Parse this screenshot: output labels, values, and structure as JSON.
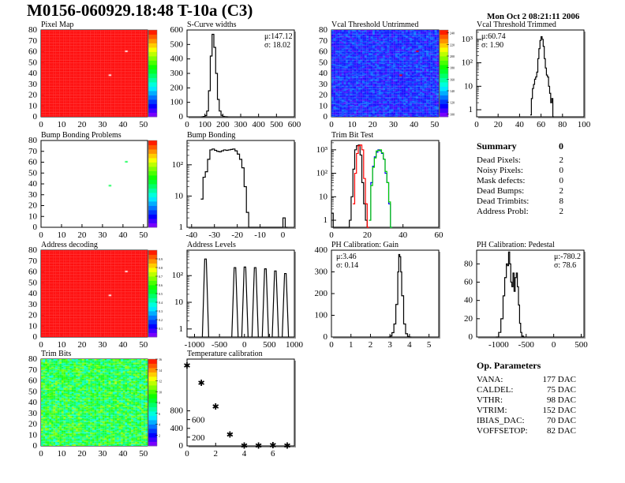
{
  "title": "M0156-060929.18:48 T-10a (C3)",
  "date": "Mon Oct  2 08:21:11 2006",
  "summary": {
    "title": "Summary",
    "value": "0",
    "rows": [
      {
        "label": "Dead Pixels:",
        "value": "2"
      },
      {
        "label": "Noisy Pixels:",
        "value": "0"
      },
      {
        "label": "Mask defects:",
        "value": "0"
      },
      {
        "label": "Dead Bumps:",
        "value": "2"
      },
      {
        "label": "Dead Trimbits:",
        "value": "8"
      },
      {
        "label": "Address Probl:",
        "value": "2"
      }
    ]
  },
  "op_parameters": {
    "title": "Op. Parameters",
    "rows": [
      {
        "label": "VANA:",
        "value": "177 DAC"
      },
      {
        "label": "CALDEL:",
        "value": "75 DAC"
      },
      {
        "label": "VTHR:",
        "value": "98 DAC"
      },
      {
        "label": "VTRIM:",
        "value": "152 DAC"
      },
      {
        "label": "IBIAS_DAC:",
        "value": "70 DAC"
      },
      {
        "label": "VOFFSETOP:",
        "value": "82 DAC"
      }
    ]
  },
  "chart_data": [
    {
      "id": "pixel-map",
      "type": "heatmap",
      "title": "Pixel Map",
      "xlim": [
        0,
        52
      ],
      "ylim": [
        0,
        80
      ],
      "xticks": [
        0,
        10,
        20,
        30,
        40,
        50
      ],
      "yticks": [
        0,
        10,
        20,
        30,
        40,
        50,
        60,
        70,
        80
      ],
      "zlim": [
        0,
        10
      ],
      "base": 10,
      "spread": 0,
      "special": [
        {
          "x": 33,
          "y": 38,
          "z": 0
        },
        {
          "x": 41,
          "y": 60,
          "z": 0
        }
      ],
      "empty_color": "#ffffff"
    },
    {
      "id": "s-curve-widths",
      "type": "hist",
      "title": "S-Curve widths",
      "xlim": [
        0,
        600
      ],
      "ylim": [
        0,
        600
      ],
      "xticks": [
        0,
        100,
        200,
        300,
        400,
        500,
        600
      ],
      "yticks": [
        0,
        100,
        200,
        300,
        400,
        500,
        600
      ],
      "stats": [
        "μ:147.12",
        "σ: 18.02"
      ],
      "stats_pos": "top-right",
      "series": [
        {
          "color": "#000000",
          "x": [
            80,
            90,
            100,
            110,
            120,
            130,
            140,
            150,
            160,
            170,
            180,
            190,
            200,
            210,
            220
          ],
          "y": [
            0,
            2,
            8,
            40,
            180,
            420,
            570,
            480,
            300,
            120,
            40,
            10,
            3,
            1,
            0
          ]
        }
      ]
    },
    {
      "id": "vcal-threshold-untrimmed",
      "type": "heatmap",
      "title": "Vcal Threshold Untrimmed",
      "xlim": [
        0,
        52
      ],
      "ylim": [
        0,
        80
      ],
      "xticks": [
        0,
        10,
        20,
        30,
        40,
        50
      ],
      "yticks": [
        0,
        10,
        20,
        30,
        40,
        50,
        60,
        70,
        80
      ],
      "zlim": [
        95,
        245
      ],
      "zticks": [
        100,
        120,
        140,
        160,
        180,
        200,
        220,
        240
      ],
      "base": 117,
      "spread": 14,
      "special": [
        {
          "x": 33,
          "y": 38,
          "z": 245
        },
        {
          "x": 41,
          "y": 60,
          "z": 245
        }
      ]
    },
    {
      "id": "vcal-threshold-trimmed",
      "type": "hist",
      "title": "Vcal Threshold Trimmed",
      "log": true,
      "xlim": [
        0,
        100
      ],
      "ylim": [
        0.5,
        2500
      ],
      "xticks": [
        0,
        20,
        40,
        60,
        80,
        100
      ],
      "ylogticks": [
        1,
        10,
        100,
        1000
      ],
      "stats": [
        "μ:60.74",
        "σ: 1.90"
      ],
      "stats_pos": "top-left",
      "series": [
        {
          "color": "#000000",
          "x": [
            50,
            51,
            52,
            53,
            54,
            55,
            56,
            57,
            58,
            59,
            60,
            61,
            62,
            63,
            64,
            65,
            66,
            67,
            68,
            69,
            70,
            71
          ],
          "y": [
            0.6,
            3,
            8,
            12,
            20,
            25,
            40,
            150,
            400,
            900,
            1300,
            1000,
            500,
            150,
            60,
            30,
            25,
            10,
            5,
            2,
            3,
            0.5
          ]
        }
      ]
    },
    {
      "id": "bump-bonding-problems",
      "type": "heatmap",
      "title": "Bump Bonding Problems",
      "xlim": [
        0,
        52
      ],
      "ylim": [
        0,
        80
      ],
      "xticks": [
        0,
        10,
        20,
        30,
        40,
        50
      ],
      "yticks": [
        0,
        10,
        20,
        30,
        40,
        50,
        60,
        70,
        80
      ],
      "zlim": [
        0,
        5
      ],
      "base": null,
      "spread": 0,
      "special": [
        {
          "x": 33,
          "y": 38,
          "z": 2.5
        },
        {
          "x": 41,
          "y": 60,
          "z": 2.5
        }
      ]
    },
    {
      "id": "bump-bonding",
      "type": "hist",
      "title": "Bump Bonding",
      "log": true,
      "xlim": [
        -42,
        5
      ],
      "ylim": [
        1,
        600
      ],
      "xticks": [
        -40,
        -30,
        -20,
        -10,
        0
      ],
      "ylogticks": [
        1,
        10,
        100
      ],
      "series": [
        {
          "color": "#000000",
          "x": [
            -36,
            -35,
            -34,
            -33,
            -32,
            -31,
            -30,
            -29,
            -28,
            -27,
            -26,
            -25,
            -24,
            -23,
            -22,
            -21,
            -20,
            -19,
            -18,
            -17,
            -16,
            -15,
            0,
            1
          ],
          "y": [
            8,
            40,
            60,
            150,
            300,
            320,
            290,
            270,
            260,
            280,
            300,
            290,
            300,
            310,
            320,
            280,
            220,
            150,
            80,
            20,
            3,
            1,
            2,
            1
          ]
        }
      ]
    },
    {
      "id": "trim-bit-test",
      "type": "hist",
      "title": "Trim Bit Test",
      "log": true,
      "xlim": [
        0,
        60
      ],
      "ylim": [
        0.5,
        2500
      ],
      "xticks": [
        0,
        20,
        40,
        60
      ],
      "ylogticks": [
        1,
        10,
        100,
        1000
      ],
      "series": [
        {
          "color": "#000000",
          "x": [
            0,
            1,
            10,
            11,
            12,
            13,
            14,
            15,
            16,
            17,
            18,
            19,
            20
          ],
          "y": [
            2,
            0.5,
            1,
            10,
            150,
            1000,
            1500,
            1600,
            600,
            40,
            5,
            1,
            0.5
          ]
        },
        {
          "color": "#ff0000",
          "x": [
            12,
            13,
            14,
            15,
            16,
            17,
            18,
            19,
            20
          ],
          "y": [
            5,
            100,
            700,
            1500,
            1600,
            1000,
            60,
            5,
            0.5
          ]
        },
        {
          "color": "#0000ff",
          "x": [
            21,
            22,
            23,
            24,
            25,
            26,
            27,
            28,
            29,
            30,
            31,
            32,
            33
          ],
          "y": [
            1,
            40,
            200,
            500,
            800,
            1000,
            900,
            700,
            400,
            100,
            40,
            5,
            0.5
          ]
        },
        {
          "color": "#00cc00",
          "x": [
            21,
            22,
            23,
            24,
            25,
            26,
            27,
            28,
            29,
            30,
            31,
            32,
            33
          ],
          "y": [
            1,
            30,
            180,
            450,
            900,
            950,
            1000,
            750,
            400,
            120,
            40,
            6,
            0.5
          ]
        }
      ]
    },
    {
      "id": "address-decoding",
      "type": "heatmap",
      "title": "Address decoding",
      "xlim": [
        0,
        52
      ],
      "ylim": [
        0,
        80
      ],
      "xticks": [
        0,
        10,
        20,
        30,
        40,
        50
      ],
      "yticks": [
        0,
        10,
        20,
        30,
        40,
        50,
        60,
        70,
        80
      ],
      "zlim": [
        0,
        1
      ],
      "zticks": [
        0.1,
        0.2,
        0.3,
        0.4,
        0.5,
        0.6,
        0.7,
        0.8,
        0.9
      ],
      "base": 1,
      "spread": 0,
      "special": [
        {
          "x": 33,
          "y": 38,
          "z": 0
        },
        {
          "x": 41,
          "y": 60,
          "z": 0
        }
      ],
      "empty_color": "#ffffff"
    },
    {
      "id": "address-levels",
      "type": "spikes",
      "title": "Address Levels",
      "log": true,
      "xlim": [
        -1150,
        1000
      ],
      "ylim": [
        0.5,
        900
      ],
      "xticks": [
        -1000,
        -500,
        0,
        500,
        1000
      ],
      "ylogticks": [
        1,
        10,
        100
      ],
      "peaks": [
        {
          "x": -780,
          "y": 420
        },
        {
          "x": -190,
          "y": 200
        },
        {
          "x": 10,
          "y": 210
        },
        {
          "x": 215,
          "y": 200
        },
        {
          "x": 420,
          "y": 180
        },
        {
          "x": 620,
          "y": 150
        },
        {
          "x": 820,
          "y": 120
        }
      ]
    },
    {
      "id": "ph-calibration-gain",
      "type": "hist",
      "title": "PH Calibration: Gain",
      "xlim": [
        0,
        5.5
      ],
      "ylim": [
        0,
        400
      ],
      "xticks": [
        0,
        1,
        2,
        3,
        4,
        5
      ],
      "yticks": [
        0,
        100,
        200,
        300,
        400
      ],
      "stats": [
        "μ:3.46",
        "σ: 0.14"
      ],
      "stats_pos": "top-left",
      "series": [
        {
          "color": "#000000",
          "x": [
            2.9,
            3.0,
            3.1,
            3.2,
            3.3,
            3.4,
            3.45,
            3.5,
            3.55,
            3.6,
            3.7,
            3.8,
            3.9,
            4.0
          ],
          "y": [
            0,
            5,
            20,
            60,
            150,
            300,
            380,
            370,
            300,
            190,
            60,
            15,
            3,
            0
          ]
        }
      ]
    },
    {
      "id": "ph-calibration-pedestal",
      "type": "hist",
      "title": "PH Calibration: Pedestal",
      "xlim": [
        -1400,
        550
      ],
      "ylim": [
        0,
        95
      ],
      "xticks": [
        -1000,
        -500,
        0,
        500
      ],
      "yticks": [
        0,
        20,
        40,
        60,
        80
      ],
      "stats": [
        "μ:-780.2",
        "σ: 78.6"
      ],
      "stats_pos": "top-right",
      "series": [
        {
          "color": "#000000",
          "x": [
            -1050,
            -1000,
            -960,
            -920,
            -890,
            -860,
            -840,
            -820,
            -800,
            -780,
            -760,
            -740,
            -720,
            -700,
            -680,
            -660,
            -640,
            -620,
            -600,
            -580,
            -550
          ],
          "y": [
            0,
            5,
            20,
            45,
            65,
            80,
            78,
            93,
            80,
            60,
            55,
            70,
            50,
            65,
            70,
            55,
            35,
            15,
            5,
            1,
            0
          ]
        }
      ]
    },
    {
      "id": "trim-bits",
      "type": "heatmap",
      "title": "Trim Bits",
      "xlim": [
        0,
        52
      ],
      "ylim": [
        0,
        80
      ],
      "xticks": [
        0,
        10,
        20,
        30,
        40,
        50
      ],
      "yticks": [
        0,
        10,
        20,
        30,
        40,
        50,
        60,
        70,
        80
      ],
      "zlim": [
        0,
        16
      ],
      "zticks": [
        2,
        4,
        6,
        8,
        10,
        12,
        14,
        16
      ],
      "base": 8.5,
      "spread": 3,
      "special": []
    },
    {
      "id": "temperature-calibration",
      "type": "points",
      "title": "Temperature calibration",
      "xlim": [
        0,
        7.5
      ],
      "ylim": [
        0,
        1980
      ],
      "xticks": [
        0,
        2,
        4,
        6
      ],
      "yticks": [
        0,
        200,
        400,
        600,
        800
      ],
      "marker": "*",
      "x": [
        0,
        1,
        2,
        3,
        4,
        5,
        6,
        7
      ],
      "y": [
        1840,
        1440,
        900,
        260,
        10,
        10,
        20,
        10
      ]
    }
  ]
}
